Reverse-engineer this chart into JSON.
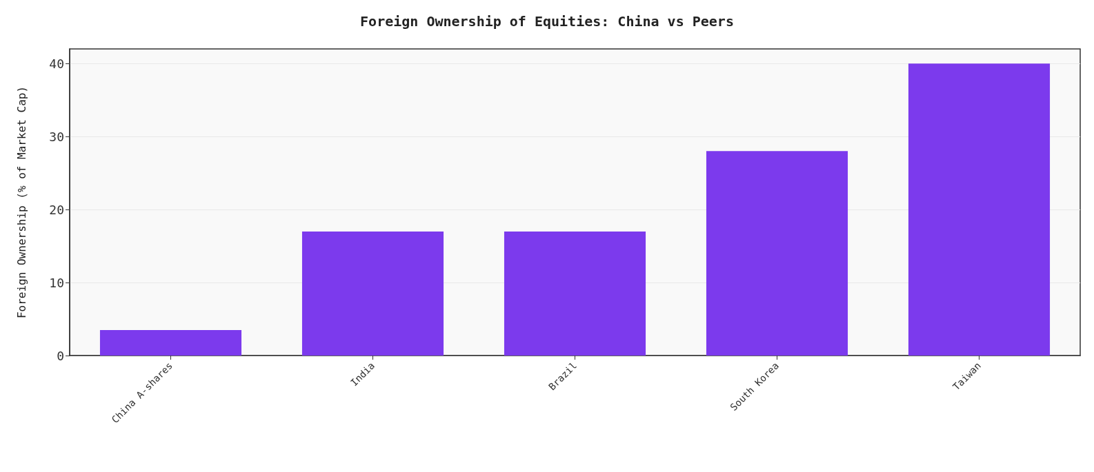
{
  "chart_data": {
    "type": "bar",
    "title": "Foreign Ownership of Equities: China vs Peers",
    "ylabel": "Foreign Ownership (% of Market Cap)",
    "categories": [
      "China A-shares",
      "India",
      "Brazil",
      "South Korea",
      "Taiwan"
    ],
    "values": [
      3.5,
      17,
      17,
      28,
      40
    ],
    "color": "#7c3aed",
    "ylim": [
      0,
      42
    ],
    "yticks": [
      0,
      10,
      20,
      30,
      40
    ],
    "grid": "y"
  }
}
